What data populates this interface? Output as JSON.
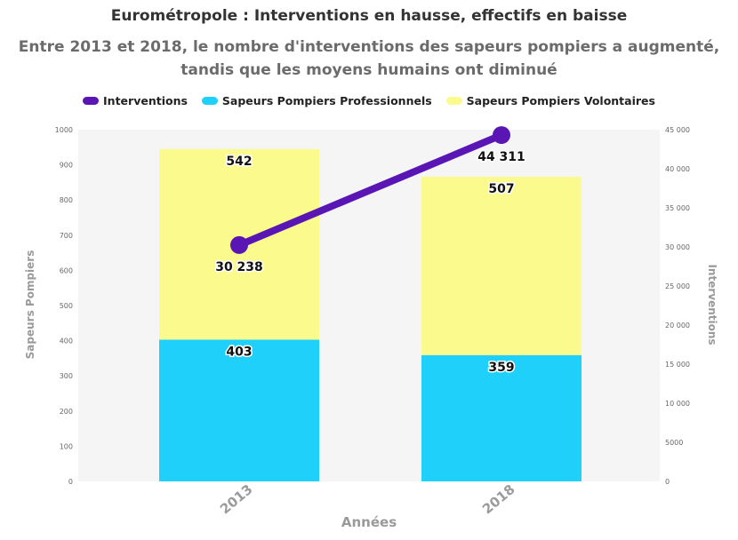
{
  "chart_data": {
    "type": "bar",
    "title": "Eurométropole : Interventions en hausse, effectifs en baisse",
    "subtitle": "Entre 2013 et 2018, le nombre d'interventions des sapeurs pompiers a augmenté, tandis que les moyens humains ont diminué",
    "xlabel": "Années",
    "ylabel": "Sapeurs Pompiers",
    "y2label": "Interventions",
    "categories": [
      "2013",
      "2018"
    ],
    "ylim": [
      0,
      1000
    ],
    "y2lim": [
      0,
      45000
    ],
    "yticks": [
      "0",
      "100",
      "200",
      "300",
      "400",
      "500",
      "600",
      "700",
      "800",
      "900",
      "1000"
    ],
    "y2ticks": [
      "0",
      "5000",
      "10 000",
      "15 000",
      "20 000",
      "25 000",
      "30 000",
      "35 000",
      "40 000",
      "45 000"
    ],
    "stacked": true,
    "series": [
      {
        "name": "Sapeurs Pompiers Professionnels",
        "type": "bar",
        "axis": "left",
        "color": "#1ed0fa",
        "values": [
          403,
          359
        ],
        "labels": [
          "403",
          "359"
        ]
      },
      {
        "name": "Sapeurs Pompiers Volontaires",
        "type": "bar",
        "axis": "left",
        "color": "#fbfa8d",
        "values": [
          542,
          507
        ],
        "labels": [
          "542",
          "507"
        ]
      },
      {
        "name": "Interventions",
        "type": "line",
        "axis": "right",
        "color": "#5a16b4",
        "values": [
          30238,
          44311
        ],
        "labels": [
          "30 238",
          "44 311"
        ]
      }
    ],
    "legend_order": [
      "Interventions",
      "Sapeurs Pompiers Professionnels",
      "Sapeurs Pompiers Volontaires"
    ],
    "legend_position": "top-center",
    "grid": false
  }
}
